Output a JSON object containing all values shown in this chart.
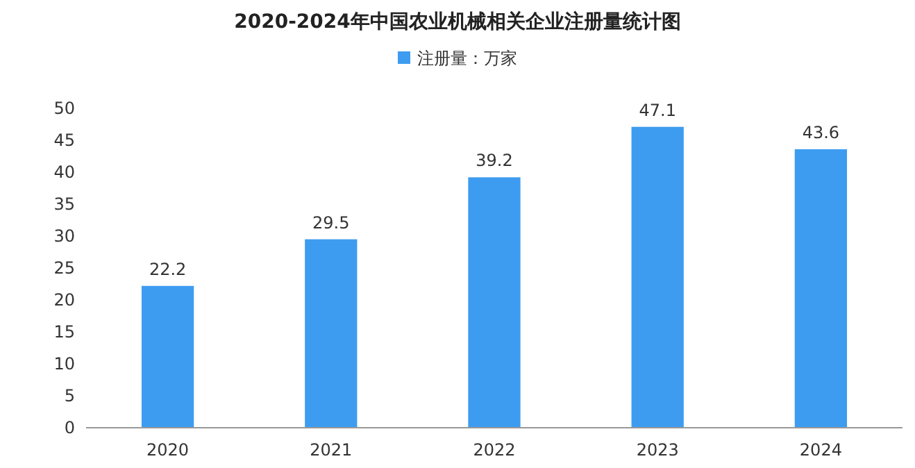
{
  "chart_data": {
    "type": "bar",
    "title": "2020-2024年中国农业机械相关企业注册量统计图",
    "categories": [
      "2020",
      "2021",
      "2022",
      "2023",
      "2024"
    ],
    "series": [
      {
        "name": "注册量：万家",
        "color": "#3d9cf0",
        "values": [
          22.2,
          29.5,
          39.2,
          47.1,
          43.6
        ]
      }
    ],
    "ylim": [
      0,
      50
    ],
    "yticks": [
      0,
      5,
      10,
      15,
      20,
      25,
      30,
      35,
      40,
      45,
      50
    ],
    "data_labels": true,
    "legend": "top",
    "grid": false
  }
}
